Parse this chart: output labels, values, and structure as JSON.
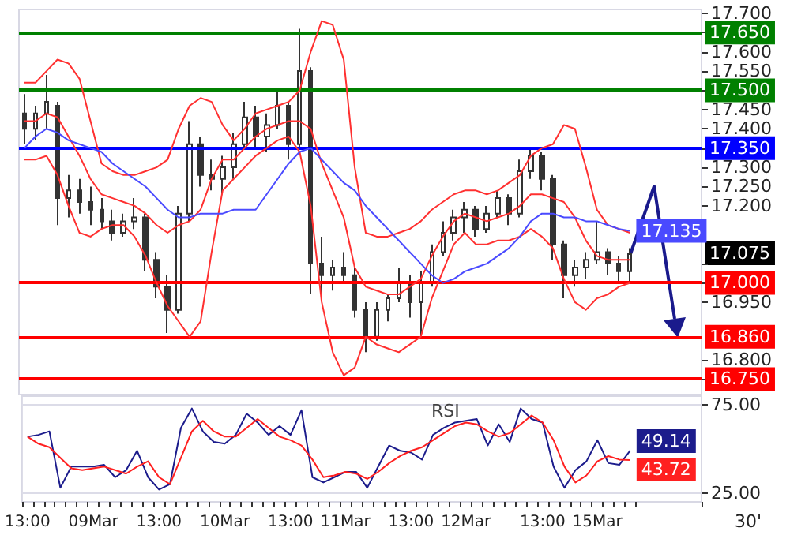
{
  "chart_data": [
    {
      "type": "candlestick",
      "color": "#333333",
      "tick_labels": "y",
      "categories": [
        null,
        null,
        null,
        null,
        null,
        null,
        null,
        null,
        null,
        null,
        null,
        null,
        null,
        null,
        null,
        null,
        null,
        null,
        null,
        null,
        null,
        null,
        null,
        null,
        null,
        null,
        null,
        null,
        null,
        null,
        null,
        null,
        null,
        null,
        null,
        null,
        null,
        null,
        null,
        null,
        null,
        null,
        null,
        null,
        null,
        null,
        null,
        null,
        null,
        null,
        null,
        null,
        null,
        null,
        null,
        null
      ],
      "ohlc": [
        [
          17.44,
          17.49,
          17.36,
          17.4
        ],
        [
          17.4,
          17.46,
          17.37,
          17.44
        ],
        [
          17.44,
          17.54,
          17.4,
          17.47
        ],
        [
          17.46,
          17.47,
          17.15,
          17.22
        ],
        [
          17.22,
          17.28,
          17.17,
          17.24
        ],
        [
          17.24,
          17.27,
          17.18,
          17.21
        ],
        [
          17.21,
          17.25,
          17.15,
          17.19
        ],
        [
          17.19,
          17.22,
          17.14,
          17.16
        ],
        [
          17.16,
          17.19,
          17.11,
          17.13
        ],
        [
          17.13,
          17.18,
          17.12,
          17.16
        ],
        [
          17.16,
          17.22,
          17.14,
          17.17
        ],
        [
          17.17,
          17.18,
          17.03,
          17.06
        ],
        [
          17.06,
          17.08,
          16.96,
          16.99
        ],
        [
          16.99,
          17.02,
          16.87,
          16.93
        ],
        [
          16.93,
          17.2,
          16.92,
          17.18
        ],
        [
          17.18,
          17.42,
          17.16,
          17.36
        ],
        [
          17.36,
          17.38,
          17.25,
          17.28
        ],
        [
          17.28,
          17.32,
          17.24,
          17.27
        ],
        [
          17.27,
          17.33,
          17.23,
          17.3
        ],
        [
          17.3,
          17.39,
          17.27,
          17.36
        ],
        [
          17.36,
          17.47,
          17.35,
          17.43
        ],
        [
          17.43,
          17.46,
          17.35,
          17.38
        ],
        [
          17.38,
          17.44,
          17.34,
          17.41
        ],
        [
          17.41,
          17.5,
          17.4,
          17.46
        ],
        [
          17.46,
          17.47,
          17.32,
          17.36
        ],
        [
          17.36,
          17.66,
          17.35,
          17.55
        ],
        [
          17.55,
          17.56,
          16.97,
          17.05
        ],
        [
          17.05,
          17.12,
          16.97,
          17.02
        ],
        [
          17.02,
          17.06,
          16.98,
          17.04
        ],
        [
          17.04,
          17.08,
          17.0,
          17.02
        ],
        [
          17.02,
          17.04,
          16.91,
          16.93
        ],
        [
          16.93,
          16.95,
          16.82,
          16.86
        ],
        [
          16.86,
          16.95,
          16.85,
          16.93
        ],
        [
          16.93,
          16.97,
          16.9,
          16.96
        ],
        [
          16.96,
          17.04,
          16.95,
          17.0
        ],
        [
          17.0,
          17.02,
          16.91,
          16.95
        ],
        [
          16.95,
          17.03,
          16.86,
          17.0
        ],
        [
          17.0,
          17.1,
          16.99,
          17.08
        ],
        [
          17.08,
          17.16,
          17.07,
          17.13
        ],
        [
          17.13,
          17.19,
          17.11,
          17.17
        ],
        [
          17.17,
          17.21,
          17.13,
          17.19
        ],
        [
          17.19,
          17.2,
          17.12,
          17.14
        ],
        [
          17.14,
          17.2,
          17.13,
          17.18
        ],
        [
          17.18,
          17.24,
          17.17,
          17.22
        ],
        [
          17.22,
          17.23,
          17.15,
          17.18
        ],
        [
          17.18,
          17.32,
          17.17,
          17.29
        ],
        [
          17.29,
          17.35,
          17.27,
          17.33
        ],
        [
          17.33,
          17.34,
          17.24,
          17.27
        ],
        [
          17.27,
          17.28,
          17.06,
          17.1
        ],
        [
          17.1,
          17.11,
          16.96,
          17.02
        ],
        [
          17.02,
          17.06,
          16.99,
          17.04
        ],
        [
          17.04,
          17.08,
          17.01,
          17.06
        ],
        [
          17.06,
          17.16,
          17.05,
          17.08
        ],
        [
          17.08,
          17.09,
          17.02,
          17.05
        ],
        [
          17.05,
          17.07,
          17.0,
          17.03
        ],
        [
          17.03,
          17.09,
          17.0,
          17.075
        ]
      ],
      "series": [
        {
          "type": "line",
          "color": "#ff3030",
          "values": [
            17.52,
            17.52,
            17.55,
            17.58,
            17.57,
            17.53,
            17.42,
            17.31,
            17.29,
            17.28,
            17.28,
            17.29,
            17.3,
            17.32,
            17.4,
            17.46,
            17.48,
            17.47,
            17.41,
            17.37,
            17.4,
            17.44,
            17.45,
            17.46,
            17.47,
            17.5,
            17.6,
            17.68,
            17.67,
            17.58,
            17.3,
            17.13,
            17.12,
            17.12,
            17.13,
            17.14,
            17.16,
            17.19,
            17.21,
            17.23,
            17.24,
            17.24,
            17.23,
            17.24,
            17.26,
            17.28,
            17.33,
            17.35,
            17.36,
            17.41,
            17.4,
            17.3,
            17.19,
            17.15,
            17.14,
            17.13
          ]
        },
        {
          "type": "line",
          "color": "#ff3030",
          "values": [
            17.42,
            17.42,
            17.44,
            17.43,
            17.38,
            17.33,
            17.27,
            17.23,
            17.22,
            17.21,
            17.2,
            17.18,
            17.15,
            17.13,
            17.15,
            17.16,
            17.19,
            17.27,
            17.32,
            17.32,
            17.35,
            17.38,
            17.4,
            17.41,
            17.42,
            17.42,
            17.4,
            17.31,
            17.24,
            17.17,
            17.04,
            16.99,
            16.98,
            16.97,
            16.97,
            16.99,
            17.01,
            17.07,
            17.12,
            17.16,
            17.18,
            17.17,
            17.16,
            17.17,
            17.18,
            17.2,
            17.23,
            17.23,
            17.22,
            17.21,
            17.17,
            17.11,
            17.07,
            17.06,
            17.06,
            17.06
          ]
        },
        {
          "type": "line",
          "color": "#ff3030",
          "values": [
            17.32,
            17.32,
            17.33,
            17.28,
            17.2,
            17.13,
            17.12,
            17.14,
            17.15,
            17.15,
            17.12,
            17.07,
            17.0,
            16.94,
            16.9,
            16.86,
            16.9,
            17.08,
            17.24,
            17.27,
            17.3,
            17.33,
            17.35,
            17.37,
            17.38,
            17.34,
            17.2,
            16.95,
            16.82,
            16.76,
            16.78,
            16.86,
            16.84,
            16.83,
            16.82,
            16.84,
            16.86,
            16.96,
            17.03,
            17.1,
            17.13,
            17.1,
            17.1,
            17.11,
            17.11,
            17.12,
            17.14,
            17.12,
            17.09,
            17.01,
            16.95,
            16.93,
            16.96,
            16.97,
            16.99,
            17.0
          ]
        },
        {
          "type": "line",
          "color": "#4a4aff",
          "values": [
            17.35,
            17.38,
            17.4,
            17.39,
            17.37,
            17.36,
            17.35,
            17.34,
            17.31,
            17.29,
            17.27,
            17.25,
            17.22,
            17.19,
            17.17,
            17.17,
            17.18,
            17.18,
            17.18,
            17.19,
            17.19,
            17.19,
            17.23,
            17.27,
            17.31,
            17.34,
            17.35,
            17.32,
            17.29,
            17.26,
            17.24,
            17.2,
            17.17,
            17.14,
            17.11,
            17.08,
            17.05,
            17.02,
            17.0,
            17.01,
            17.03,
            17.04,
            17.05,
            17.07,
            17.09,
            17.12,
            17.16,
            17.18,
            17.18,
            17.17,
            17.17,
            17.16,
            17.16,
            17.15,
            17.14,
            17.135
          ],
          "value_labels": [
            null,
            null,
            null,
            null,
            null,
            null,
            null,
            null,
            null,
            null,
            null,
            null,
            null,
            null,
            null,
            null,
            null,
            null,
            null,
            null,
            null,
            null,
            null,
            null,
            null,
            null,
            null,
            null,
            null,
            null,
            null,
            null,
            null,
            null,
            null,
            null,
            null,
            null,
            null,
            null,
            null,
            null,
            null,
            null,
            null,
            null,
            null,
            null,
            null,
            null,
            null,
            null,
            null,
            null,
            null,
            "17.135"
          ]
        }
      ],
      "ylim": [
        16.71,
        17.71
      ],
      "yticks": [
        {
          "value": 16.75,
          "label": null
        },
        {
          "value": 16.8,
          "label": "16.800"
        },
        {
          "value": 16.95,
          "label": "16.950"
        },
        {
          "value": 17.0,
          "label": null
        },
        {
          "value": 17.05,
          "label": null
        },
        {
          "value": 17.2,
          "label": "17.200"
        },
        {
          "value": 17.25,
          "label": "17.250"
        },
        {
          "value": 17.3,
          "label": "17.300"
        },
        {
          "value": 17.35,
          "label": null
        },
        {
          "value": 17.4,
          "label": "17.400"
        },
        {
          "value": 17.45,
          "label": "17.450"
        },
        {
          "value": 17.5,
          "label": null
        },
        {
          "value": 17.55,
          "label": "17.550"
        },
        {
          "value": 17.6,
          "label": "17.600"
        },
        {
          "value": 17.65,
          "label": null
        },
        {
          "value": 17.7,
          "label": "17.700"
        }
      ],
      "ref_lines": [
        {
          "axis": "y",
          "value": 17.65,
          "label": "17.650",
          "color": "#008000"
        },
        {
          "axis": "y",
          "value": 17.5,
          "label": "17.500",
          "color": "#008000"
        },
        {
          "axis": "y",
          "value": 17.35,
          "label": "17.350",
          "color": "#0000ff"
        },
        {
          "axis": "y",
          "value": 17.0,
          "label": "17.000",
          "color": "#ff0000"
        },
        {
          "axis": "y",
          "value": 16.86,
          "label": "16.860",
          "color": "#ff0000"
        },
        {
          "axis": "y",
          "value": 16.75,
          "label": "16.750",
          "color": "#ff0000"
        }
      ],
      "annotations": [
        "17.075"
      ]
    },
    {
      "type": "line",
      "title": "RSI",
      "grid": "y",
      "categories": [
        "13:00",
        null,
        null,
        null,
        null,
        null,
        "09Mar",
        null,
        null,
        null,
        null,
        null,
        "13:00",
        null,
        null,
        null,
        null,
        null,
        "10Mar",
        null,
        null,
        null,
        null,
        null,
        "13:00",
        null,
        null,
        null,
        null,
        "11Mar",
        null,
        null,
        null,
        null,
        null,
        "13:00",
        null,
        null,
        null,
        null,
        "12Mar",
        null,
        null,
        null,
        null,
        null,
        null,
        "13:00",
        null,
        null,
        null,
        null,
        "15Mar",
        null,
        null,
        null
      ],
      "series": [
        {
          "color": "#1c1c8c",
          "values": [
            57,
            58,
            60,
            28,
            40,
            40,
            40,
            41,
            34,
            38,
            49,
            34,
            27,
            30,
            62,
            73,
            60,
            54,
            53,
            58,
            70,
            65,
            58,
            63,
            58,
            72,
            34,
            31,
            34,
            37,
            37,
            28,
            40,
            52,
            49,
            48,
            44,
            58,
            62,
            65,
            66,
            67,
            52,
            64,
            54,
            73,
            67,
            65,
            40,
            28,
            38,
            43,
            55,
            42,
            41,
            49.14
          ],
          "value_labels": [
            null,
            null,
            null,
            null,
            null,
            null,
            null,
            null,
            null,
            null,
            null,
            null,
            null,
            null,
            null,
            null,
            null,
            null,
            null,
            null,
            null,
            null,
            null,
            null,
            null,
            null,
            null,
            null,
            null,
            null,
            null,
            null,
            null,
            null,
            null,
            null,
            null,
            null,
            null,
            null,
            null,
            null,
            null,
            null,
            null,
            null,
            null,
            null,
            null,
            null,
            null,
            null,
            null,
            null,
            null,
            "49.14"
          ]
        },
        {
          "color": "#ff2020",
          "values": [
            57,
            53,
            51,
            45,
            39,
            38,
            39,
            40,
            38,
            36,
            40,
            43,
            34,
            30,
            45,
            60,
            66,
            60,
            57,
            57,
            62,
            67,
            62,
            57,
            55,
            52,
            44,
            34,
            35,
            37,
            36,
            33,
            37,
            42,
            46,
            49,
            51,
            55,
            59,
            63,
            65,
            64,
            60,
            57,
            59,
            64,
            69,
            65,
            55,
            40,
            31,
            35,
            43,
            46,
            44,
            43.72
          ],
          "value_labels": [
            null,
            null,
            null,
            null,
            null,
            null,
            null,
            null,
            null,
            null,
            null,
            null,
            null,
            null,
            null,
            null,
            null,
            null,
            null,
            null,
            null,
            null,
            null,
            null,
            null,
            null,
            null,
            null,
            null,
            null,
            null,
            null,
            null,
            null,
            null,
            null,
            null,
            null,
            null,
            null,
            null,
            null,
            null,
            null,
            null,
            null,
            null,
            null,
            null,
            null,
            null,
            null,
            null,
            null,
            null,
            "43.72"
          ]
        }
      ],
      "ylim": [
        20,
        80
      ],
      "yticks": [
        {
          "value": 25,
          "label": "25.00"
        },
        {
          "value": 75,
          "label": "75.00"
        }
      ],
      "annotations": [
        "30'"
      ]
    }
  ]
}
